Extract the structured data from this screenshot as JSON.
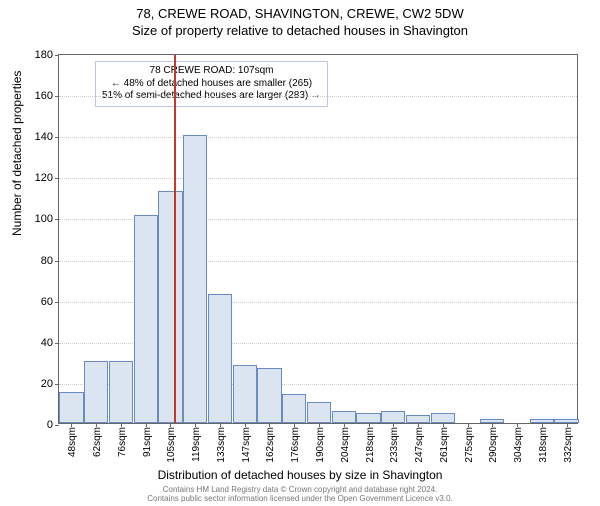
{
  "titles": {
    "address": "78, CREWE ROAD, SHAVINGTON, CREWE, CW2 5DW",
    "subtitle": "Size of property relative to detached houses in Shavington"
  },
  "ylabel": "Number of detached properties",
  "xlabel": "Distribution of detached houses by size in Shavington",
  "chart": {
    "type": "histogram",
    "ylim": [
      0,
      180
    ],
    "ytick_step": 20,
    "yticks": [
      0,
      20,
      40,
      60,
      80,
      100,
      120,
      140,
      160,
      180
    ],
    "bar_fill": "#dbe5f1",
    "bar_border": "#6a8bc0",
    "grid_color": "#cccccc",
    "axis_color": "#666666",
    "marker_color": "#c0392b",
    "background": "#ffffff",
    "title_fontsize": 13,
    "label_fontsize": 12,
    "tick_fontsize": 11,
    "categories": [
      "48sqm",
      "62sqm",
      "76sqm",
      "91sqm",
      "105sqm",
      "119sqm",
      "133sqm",
      "147sqm",
      "162sqm",
      "176sqm",
      "190sqm",
      "204sqm",
      "218sqm",
      "233sqm",
      "247sqm",
      "261sqm",
      "275sqm",
      "290sqm",
      "304sqm",
      "318sqm",
      "332sqm"
    ],
    "values": [
      15,
      30,
      30,
      101,
      113,
      140,
      63,
      28,
      27,
      14,
      10,
      6,
      5,
      6,
      4,
      5,
      0,
      2,
      0,
      2,
      2
    ],
    "marker_index": 4.14,
    "annot": {
      "line1": "78 CREWE ROAD: 107sqm",
      "line2": "← 48% of detached houses are smaller (265)",
      "line3": "51% of semi-detached houses are larger (283) →",
      "border_color": "#b9c8e0"
    }
  },
  "footer": {
    "l1": "Contains HM Land Registry data © Crown copyright and database right 2024.",
    "l2": "Contains public sector information licensed under the Open Government Licence v3.0."
  }
}
